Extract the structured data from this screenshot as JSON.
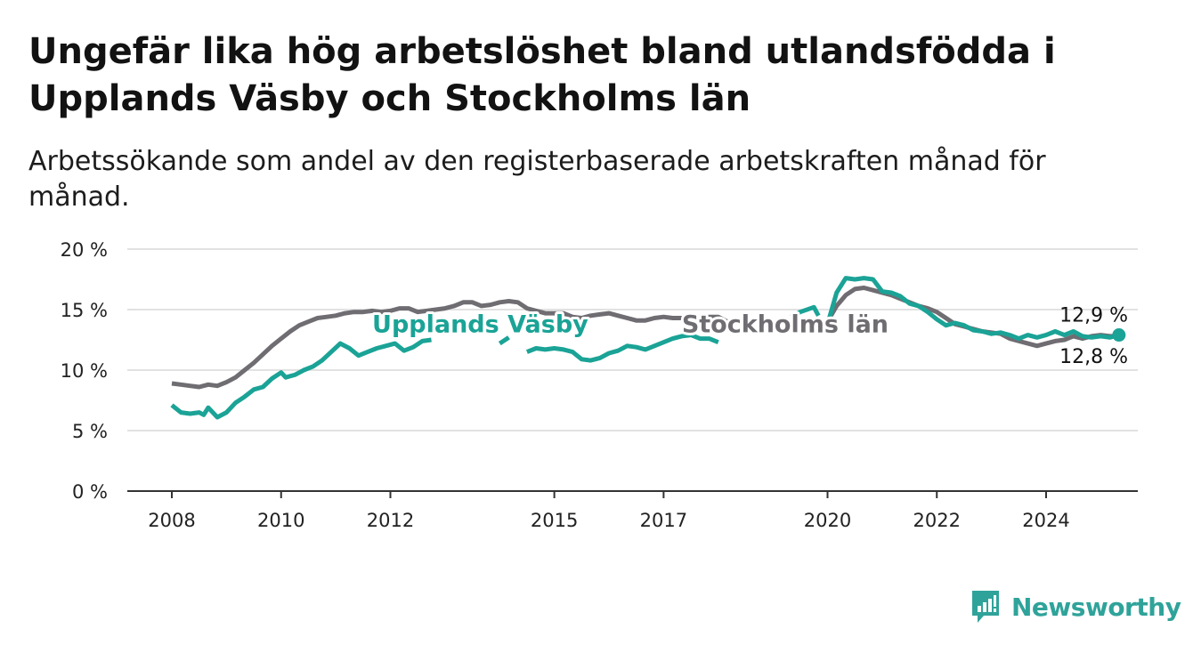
{
  "title": "Ungefär lika hög arbetslöshet bland utlandsfödda i Upplands Väsby och Stockholms län",
  "subtitle": "Arbetssökande som andel av den registerbaserade arbetskraften månad för månad.",
  "brand": {
    "name": "Newsworthy",
    "icon": "newsworthy-logo-icon",
    "color": "#2fa39a"
  },
  "chart_data": {
    "type": "line",
    "x_type": "date",
    "xlim": [
      "2008-01",
      "2025-06"
    ],
    "ylim": [
      0,
      20
    ],
    "y_ticks": [
      0,
      5,
      10,
      15,
      20
    ],
    "y_tick_labels": [
      "0 %",
      "5 %",
      "10 %",
      "15 %",
      "20 %"
    ],
    "x_ticks": [
      "2008-01",
      "2010-01",
      "2012-01",
      "2015-01",
      "2017-01",
      "2020-01",
      "2022-01",
      "2024-01"
    ],
    "x_tick_labels": [
      "2008",
      "2010",
      "2012",
      "2015",
      "2017",
      "2020",
      "2022",
      "2024"
    ],
    "grid": true,
    "legend": "inline",
    "series": [
      {
        "name": "Stockholms län",
        "color": "#6f6d72",
        "end_label": "12,8 %",
        "label_at": [
          "2017-05",
          12.7
        ],
        "segments": [
          [
            [
              "2008-01",
              8.9
            ],
            [
              "2008-03",
              8.8
            ],
            [
              "2008-05",
              8.7
            ],
            [
              "2008-07",
              8.6
            ],
            [
              "2008-09",
              8.8
            ],
            [
              "2008-11",
              8.7
            ],
            [
              "2009-01",
              9.0
            ],
            [
              "2009-03",
              9.4
            ],
            [
              "2009-05",
              10.0
            ],
            [
              "2009-07",
              10.6
            ],
            [
              "2009-09",
              11.3
            ],
            [
              "2009-11",
              12.0
            ],
            [
              "2010-01",
              12.6
            ],
            [
              "2010-03",
              13.2
            ],
            [
              "2010-05",
              13.7
            ],
            [
              "2010-07",
              14.0
            ],
            [
              "2010-09",
              14.3
            ],
            [
              "2010-11",
              14.4
            ],
            [
              "2011-01",
              14.5
            ],
            [
              "2011-03",
              14.7
            ],
            [
              "2011-05",
              14.8
            ],
            [
              "2011-07",
              14.8
            ],
            [
              "2011-09",
              14.9
            ],
            [
              "2011-11",
              14.8
            ],
            [
              "2012-01",
              14.9
            ],
            [
              "2012-03",
              15.1
            ],
            [
              "2012-05",
              15.1
            ],
            [
              "2012-07",
              14.8
            ],
            [
              "2012-09",
              14.9
            ],
            [
              "2012-11",
              15.0
            ],
            [
              "2013-01",
              15.1
            ],
            [
              "2013-03",
              15.3
            ],
            [
              "2013-05",
              15.6
            ],
            [
              "2013-07",
              15.6
            ],
            [
              "2013-09",
              15.3
            ],
            [
              "2013-11",
              15.4
            ],
            [
              "2014-01",
              15.6
            ],
            [
              "2014-03",
              15.7
            ],
            [
              "2014-05",
              15.6
            ],
            [
              "2014-07",
              15.1
            ],
            [
              "2014-09",
              14.9
            ],
            [
              "2014-11",
              14.7
            ],
            [
              "2015-01",
              14.7
            ],
            [
              "2015-03",
              14.7
            ],
            [
              "2015-05",
              14.4
            ],
            [
              "2015-07",
              14.3
            ],
            [
              "2015-09",
              14.5
            ],
            [
              "2015-11",
              14.6
            ],
            [
              "2016-01",
              14.7
            ],
            [
              "2016-03",
              14.5
            ],
            [
              "2016-05",
              14.3
            ],
            [
              "2016-07",
              14.1
            ],
            [
              "2016-09",
              14.1
            ],
            [
              "2016-11",
              14.3
            ],
            [
              "2017-01",
              14.4
            ],
            [
              "2017-03",
              14.3
            ],
            [
              "2017-05",
              14.3
            ],
            [
              "2017-07",
              14.3
            ],
            [
              "2017-09",
              14.4
            ],
            [
              "2017-11",
              14.4
            ],
            [
              "2018-01",
              14.4
            ],
            [
              "2018-03",
              14.0
            ],
            [
              "2018-05",
              14.0
            ]
          ],
          [
            [
              "2020-01",
              14.0
            ],
            [
              "2020-03",
              15.3
            ],
            [
              "2020-05",
              16.2
            ],
            [
              "2020-07",
              16.7
            ],
            [
              "2020-09",
              16.8
            ],
            [
              "2020-11",
              16.6
            ],
            [
              "2021-01",
              16.4
            ],
            [
              "2021-03",
              16.2
            ],
            [
              "2021-05",
              15.9
            ],
            [
              "2021-07",
              15.6
            ],
            [
              "2021-09",
              15.3
            ],
            [
              "2021-11",
              15.1
            ],
            [
              "2022-01",
              14.8
            ],
            [
              "2022-03",
              14.3
            ],
            [
              "2022-05",
              13.8
            ],
            [
              "2022-07",
              13.6
            ],
            [
              "2022-09",
              13.4
            ],
            [
              "2022-11",
              13.2
            ],
            [
              "2023-01",
              13.1
            ],
            [
              "2023-03",
              13.0
            ],
            [
              "2023-05",
              12.6
            ],
            [
              "2023-07",
              12.4
            ],
            [
              "2023-09",
              12.2
            ],
            [
              "2023-11",
              12.0
            ],
            [
              "2024-01",
              12.2
            ],
            [
              "2024-03",
              12.4
            ],
            [
              "2024-05",
              12.5
            ],
            [
              "2024-07",
              12.8
            ],
            [
              "2024-09",
              12.6
            ],
            [
              "2024-11",
              12.8
            ],
            [
              "2025-01",
              12.9
            ],
            [
              "2025-03",
              12.8
            ],
            [
              "2025-05",
              12.8
            ]
          ]
        ]
      },
      {
        "name": "Upplands Väsby",
        "color": "#1aa396",
        "end_label": "12,9 %",
        "label_at": [
          "2011-09",
          12.7
        ],
        "segments": [
          [
            [
              "2008-01",
              7.1
            ],
            [
              "2008-03",
              6.5
            ],
            [
              "2008-05",
              6.4
            ],
            [
              "2008-07",
              6.5
            ],
            [
              "2008-08",
              6.3
            ],
            [
              "2008-09",
              6.9
            ],
            [
              "2008-11",
              6.1
            ],
            [
              "2009-01",
              6.5
            ],
            [
              "2009-03",
              7.3
            ],
            [
              "2009-05",
              7.8
            ],
            [
              "2009-07",
              8.4
            ],
            [
              "2009-09",
              8.6
            ],
            [
              "2009-11",
              9.3
            ],
            [
              "2010-01",
              9.8
            ],
            [
              "2010-02",
              9.4
            ],
            [
              "2010-04",
              9.6
            ],
            [
              "2010-06",
              10.0
            ],
            [
              "2010-08",
              10.3
            ],
            [
              "2010-10",
              10.8
            ],
            [
              "2010-12",
              11.5
            ],
            [
              "2011-02",
              12.2
            ],
            [
              "2011-04",
              11.8
            ],
            [
              "2011-06",
              11.2
            ],
            [
              "2011-08",
              11.5
            ],
            [
              "2011-10",
              11.8
            ],
            [
              "2011-12",
              12.0
            ],
            [
              "2012-02",
              12.2
            ],
            [
              "2012-04",
              11.6
            ],
            [
              "2012-06",
              11.9
            ],
            [
              "2012-08",
              12.4
            ],
            [
              "2012-10",
              12.5
            ]
          ],
          [
            [
              "2014-01",
              12.2
            ],
            [
              "2014-03",
              12.7
            ]
          ],
          [
            [
              "2014-07",
              11.5
            ],
            [
              "2014-09",
              11.8
            ],
            [
              "2014-11",
              11.7
            ],
            [
              "2015-01",
              11.8
            ],
            [
              "2015-03",
              11.7
            ],
            [
              "2015-05",
              11.5
            ],
            [
              "2015-07",
              10.9
            ],
            [
              "2015-09",
              10.8
            ],
            [
              "2015-11",
              11.0
            ],
            [
              "2016-01",
              11.4
            ],
            [
              "2016-03",
              11.6
            ],
            [
              "2016-05",
              12.0
            ],
            [
              "2016-07",
              11.9
            ],
            [
              "2016-09",
              11.7
            ],
            [
              "2016-11",
              12.0
            ],
            [
              "2017-01",
              12.3
            ],
            [
              "2017-03",
              12.6
            ],
            [
              "2017-05",
              12.8
            ],
            [
              "2017-07",
              12.9
            ],
            [
              "2017-09",
              12.6
            ],
            [
              "2017-11",
              12.6
            ],
            [
              "2018-01",
              12.3
            ]
          ],
          [
            [
              "2019-05",
              14.4
            ],
            [
              "2019-07",
              14.8
            ],
            [
              "2019-10",
              15.2
            ],
            [
              "2019-11",
              14.5
            ]
          ],
          [
            [
              "2020-01",
              13.8
            ],
            [
              "2020-03",
              16.4
            ],
            [
              "2020-05",
              17.6
            ],
            [
              "2020-07",
              17.5
            ],
            [
              "2020-09",
              17.6
            ],
            [
              "2020-11",
              17.5
            ],
            [
              "2021-01",
              16.5
            ],
            [
              "2021-03",
              16.4
            ],
            [
              "2021-05",
              16.1
            ],
            [
              "2021-07",
              15.5
            ],
            [
              "2021-09",
              15.3
            ],
            [
              "2021-11",
              14.8
            ],
            [
              "2022-01",
              14.2
            ],
            [
              "2022-03",
              13.7
            ],
            [
              "2022-05",
              13.9
            ],
            [
              "2022-07",
              13.7
            ],
            [
              "2022-09",
              13.3
            ],
            [
              "2022-11",
              13.2
            ],
            [
              "2023-01",
              13.0
            ],
            [
              "2023-03",
              13.1
            ],
            [
              "2023-05",
              12.9
            ],
            [
              "2023-07",
              12.6
            ],
            [
              "2023-09",
              12.9
            ],
            [
              "2023-11",
              12.7
            ],
            [
              "2024-01",
              12.9
            ],
            [
              "2024-03",
              13.2
            ],
            [
              "2024-05",
              12.9
            ],
            [
              "2024-07",
              13.2
            ],
            [
              "2024-09",
              12.8
            ],
            [
              "2024-11",
              12.7
            ],
            [
              "2025-01",
              12.8
            ],
            [
              "2025-03",
              12.7
            ],
            [
              "2025-05",
              12.9
            ]
          ]
        ]
      }
    ]
  }
}
